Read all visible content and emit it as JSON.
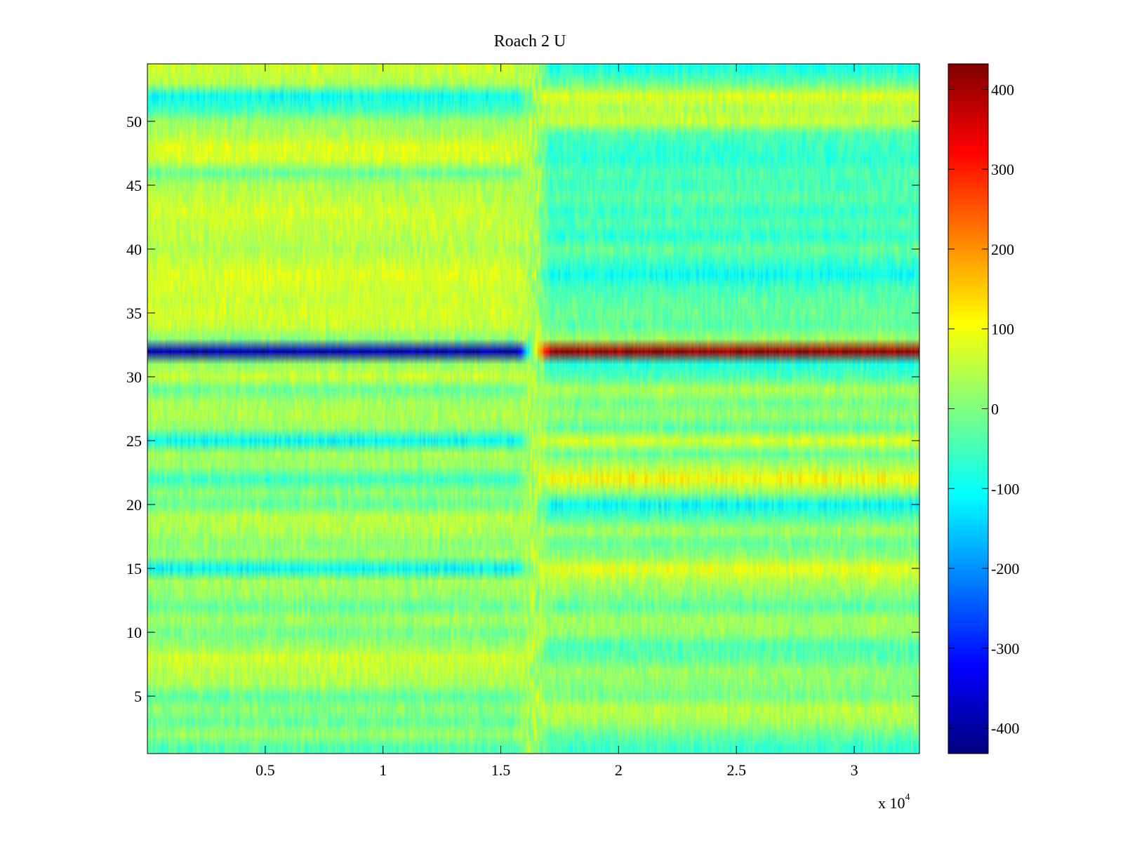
{
  "chart_data": {
    "type": "heatmap",
    "title": "Roach 2 U",
    "xlabel": "",
    "ylabel": "",
    "x_multiplier_label": "x 10",
    "x_multiplier_exponent": "4",
    "xlim": [
      0,
      32768
    ],
    "ylim": [
      0.5,
      54.5
    ],
    "x_ticks": [
      0.5,
      1,
      1.5,
      2,
      2.5,
      3
    ],
    "x_tick_labels": [
      "0.5",
      "1",
      "1.5",
      "2",
      "2.5",
      "3"
    ],
    "y_ticks": [
      5,
      10,
      15,
      20,
      25,
      30,
      35,
      40,
      45,
      50
    ],
    "y_tick_labels": [
      "5",
      "10",
      "15",
      "20",
      "25",
      "30",
      "35",
      "40",
      "45",
      "50"
    ],
    "colormap": "jet",
    "clim": [
      -432,
      432
    ],
    "colorbar_ticks": [
      400,
      300,
      200,
      100,
      0,
      -100,
      -200,
      -300,
      -400
    ],
    "colorbar_tick_labels": [
      "400",
      "300",
      "200",
      "100",
      "0",
      "-100",
      "-200",
      "-300",
      "-400"
    ],
    "transition_x": 16384,
    "rows": [
      {
        "y": 1,
        "left": -40,
        "right": -60
      },
      {
        "y": 2,
        "left": 20,
        "right": -20
      },
      {
        "y": 3,
        "left": -20,
        "right": 30
      },
      {
        "y": 4,
        "left": 10,
        "right": 50
      },
      {
        "y": 5,
        "left": -30,
        "right": -10
      },
      {
        "y": 6,
        "left": 40,
        "right": 10
      },
      {
        "y": 7,
        "left": 50,
        "right": 20
      },
      {
        "y": 8,
        "left": 70,
        "right": -30
      },
      {
        "y": 9,
        "left": 20,
        "right": -40
      },
      {
        "y": 10,
        "left": -10,
        "right": 20
      },
      {
        "y": 11,
        "left": 30,
        "right": 30
      },
      {
        "y": 12,
        "left": -20,
        "right": -30
      },
      {
        "y": 13,
        "left": 20,
        "right": 10
      },
      {
        "y": 14,
        "left": 30,
        "right": 40
      },
      {
        "y": 15,
        "left": -110,
        "right": 90
      },
      {
        "y": 16,
        "left": 20,
        "right": 10
      },
      {
        "y": 17,
        "left": 10,
        "right": -20
      },
      {
        "y": 18,
        "left": 40,
        "right": 30
      },
      {
        "y": 19,
        "left": 50,
        "right": -40
      },
      {
        "y": 20,
        "left": -20,
        "right": -110
      },
      {
        "y": 21,
        "left": 10,
        "right": 20
      },
      {
        "y": 22,
        "left": -60,
        "right": 110
      },
      {
        "y": 23,
        "left": 20,
        "right": 40
      },
      {
        "y": 24,
        "left": 30,
        "right": -20
      },
      {
        "y": 25,
        "left": -110,
        "right": 80
      },
      {
        "y": 26,
        "left": 20,
        "right": -30
      },
      {
        "y": 27,
        "left": 40,
        "right": 20
      },
      {
        "y": 28,
        "left": 30,
        "right": -10
      },
      {
        "y": 29,
        "left": -20,
        "right": 40
      },
      {
        "y": 30,
        "left": 60,
        "right": -40
      },
      {
        "y": 31,
        "left": 20,
        "right": -80
      },
      {
        "y": 32,
        "left": -390,
        "right": 410
      },
      {
        "y": 33,
        "left": 10,
        "right": 20
      },
      {
        "y": 34,
        "left": 60,
        "right": -30
      },
      {
        "y": 35,
        "left": 70,
        "right": -20
      },
      {
        "y": 36,
        "left": 60,
        "right": -30
      },
      {
        "y": 37,
        "left": 70,
        "right": -50
      },
      {
        "y": 38,
        "left": 80,
        "right": -100
      },
      {
        "y": 39,
        "left": 60,
        "right": -60
      },
      {
        "y": 40,
        "left": 40,
        "right": -20
      },
      {
        "y": 41,
        "left": 50,
        "right": -70
      },
      {
        "y": 42,
        "left": 60,
        "right": -40
      },
      {
        "y": 43,
        "left": 70,
        "right": -60
      },
      {
        "y": 44,
        "left": 50,
        "right": -30
      },
      {
        "y": 45,
        "left": 40,
        "right": -50
      },
      {
        "y": 46,
        "left": -20,
        "right": -40
      },
      {
        "y": 47,
        "left": 70,
        "right": -70
      },
      {
        "y": 48,
        "left": 80,
        "right": -60
      },
      {
        "y": 49,
        "left": 40,
        "right": -40
      },
      {
        "y": 50,
        "left": 20,
        "right": 60
      },
      {
        "y": 51,
        "left": -60,
        "right": 40
      },
      {
        "y": 52,
        "left": -100,
        "right": 80
      },
      {
        "y": 53,
        "left": 40,
        "right": -20
      },
      {
        "y": 54,
        "left": 60,
        "right": -80
      }
    ]
  }
}
